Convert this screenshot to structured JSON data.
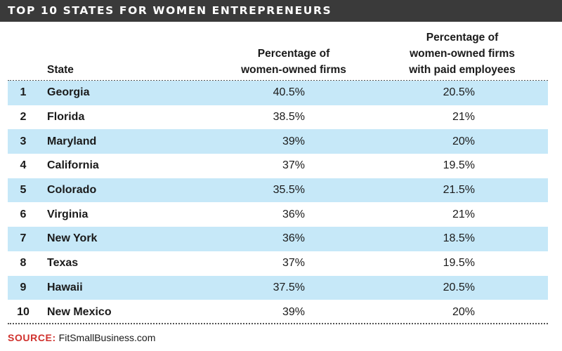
{
  "title": "TOP 10 STATES FOR WOMEN ENTREPRENEURS",
  "colors": {
    "title_bar": "#3a3a3a",
    "row_shade": "#c6e8f8",
    "source_label": "#d0312d"
  },
  "headers": {
    "state": "State",
    "pct_line1": "Percentage of",
    "pct_line2": "women-owned firms",
    "paid_line1": "Percentage of",
    "paid_line2": "women-owned firms",
    "paid_line3": "with paid employees"
  },
  "chart_data": {
    "type": "table",
    "title": "TOP 10 STATES FOR WOMEN ENTREPRENEURS",
    "columns": [
      "",
      "State",
      "Percentage of women-owned firms",
      "Percentage of women-owned firms with paid employees"
    ],
    "rows": [
      {
        "rank": "1",
        "state": "Georgia",
        "pct": "40.5%",
        "paid": "20.5%"
      },
      {
        "rank": "2",
        "state": "Florida",
        "pct": "38.5%",
        "paid": "21%"
      },
      {
        "rank": "3",
        "state": "Maryland",
        "pct": "39%",
        "paid": "20%"
      },
      {
        "rank": "4",
        "state": "California",
        "pct": "37%",
        "paid": "19.5%"
      },
      {
        "rank": "5",
        "state": "Colorado",
        "pct": "35.5%",
        "paid": "21.5%"
      },
      {
        "rank": "6",
        "state": "Virginia",
        "pct": "36%",
        "paid": "21%"
      },
      {
        "rank": "7",
        "state": "New York",
        "pct": "36%",
        "paid": "18.5%"
      },
      {
        "rank": "8",
        "state": "Texas",
        "pct": "37%",
        "paid": "19.5%"
      },
      {
        "rank": "9",
        "state": "Hawaii",
        "pct": "37.5%",
        "paid": "20.5%"
      },
      {
        "rank": "10",
        "state": "New Mexico",
        "pct": "39%",
        "paid": "20%"
      }
    ]
  },
  "source": {
    "label": "SOURCE:",
    "value": "FitSmallBusiness.com"
  }
}
